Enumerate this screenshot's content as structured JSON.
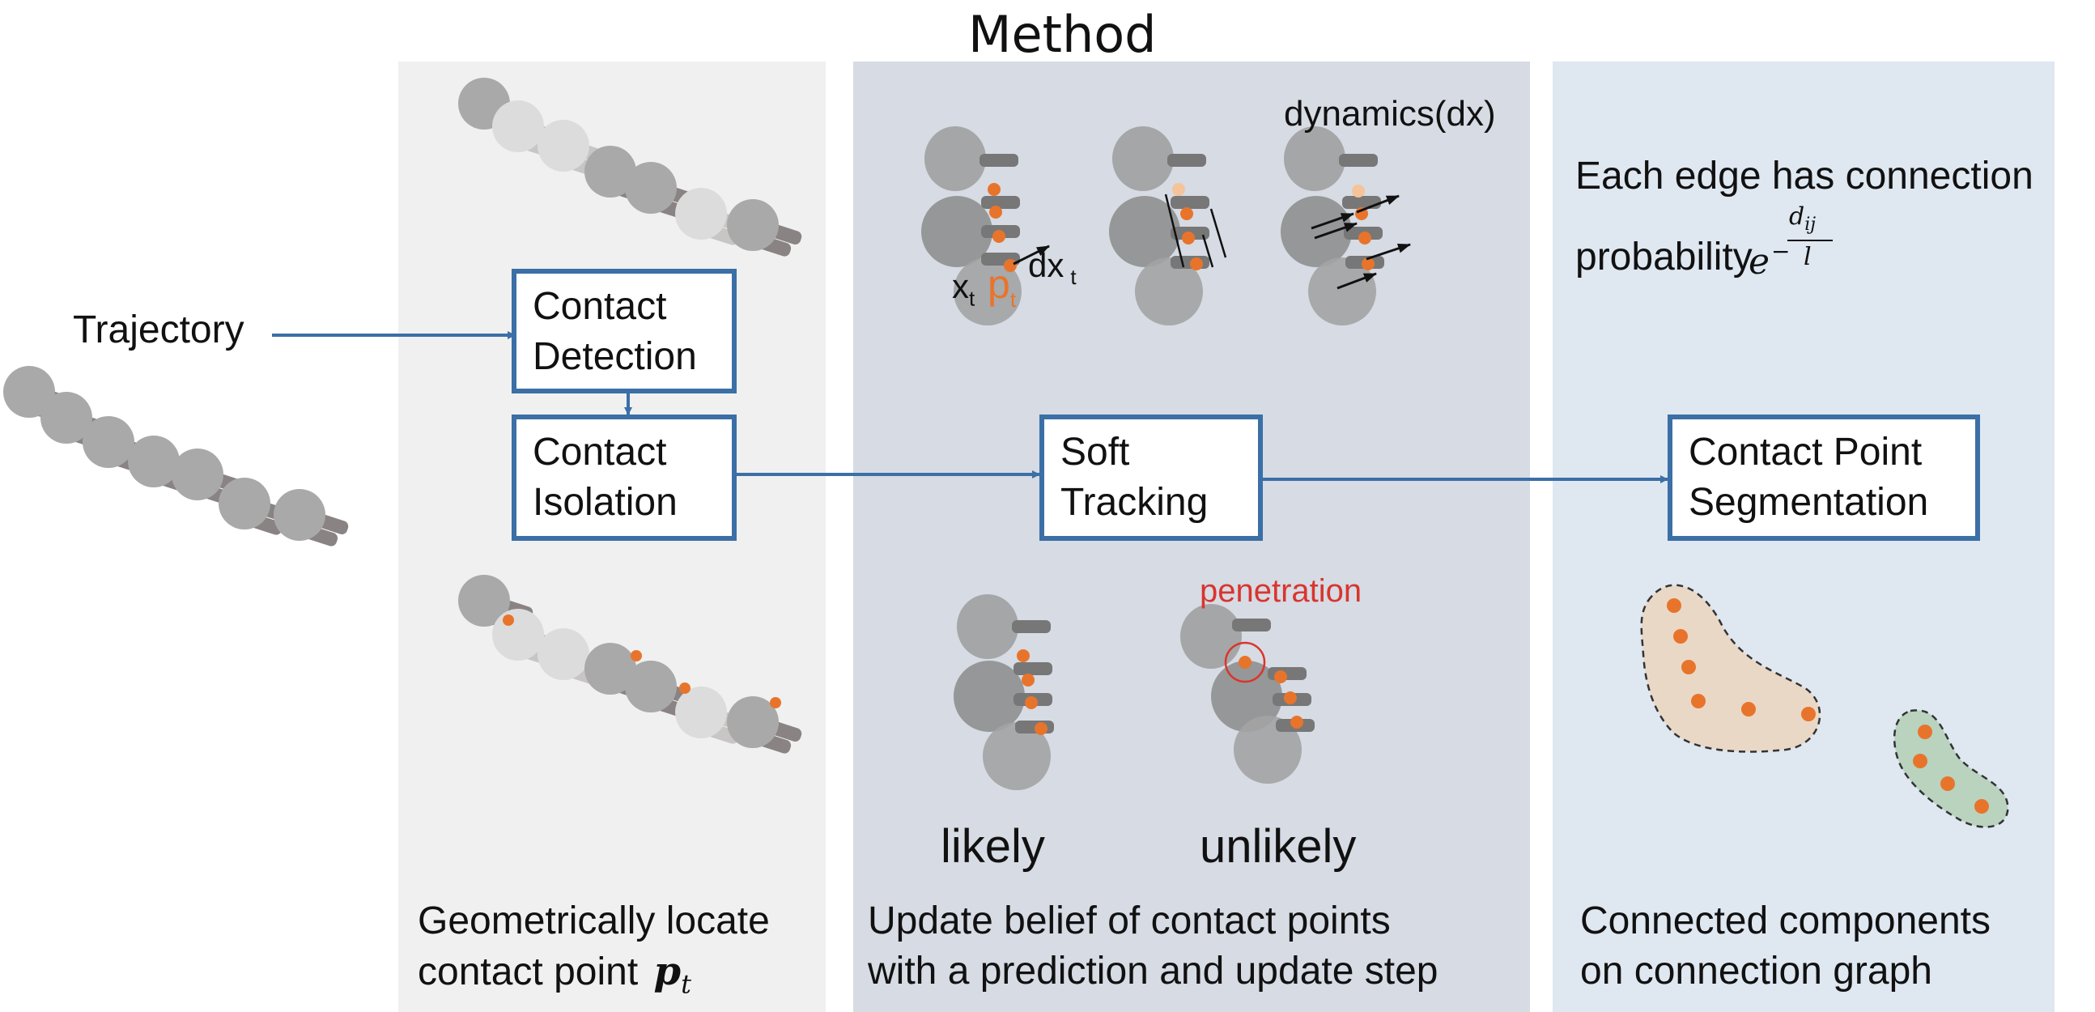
{
  "title": "Method",
  "input": {
    "label": "Trajectory"
  },
  "panels": {
    "detection": {
      "box1": {
        "line1": "Contact",
        "line2": "Detection"
      },
      "box2": {
        "line1": "Contact",
        "line2": "Isolation"
      },
      "caption_line1": "Geometrically locate",
      "caption_line2_text": "contact point",
      "caption_symbol": "p",
      "caption_subscript": "t"
    },
    "tracking": {
      "box": {
        "line1": "Soft",
        "line2": "Tracking"
      },
      "dynamics_label": "dynamics(dx)",
      "x_label": "x",
      "x_sub": "t",
      "p_label": "p",
      "p_sub": "t",
      "dx_label": "dx",
      "dx_sub": "t",
      "likely_label": "likely",
      "unlikely_label": "unlikely",
      "penetration_label": "penetration",
      "caption_line1": "Update belief of contact points",
      "caption_line2": "with a prediction and update step"
    },
    "segmentation": {
      "box": {
        "line1": "Contact Point",
        "line2": "Segmentation"
      },
      "edge_text_line1": "Each edge has connection",
      "edge_text_line2": "probability",
      "formula_base": "e",
      "formula_numerator": "d",
      "formula_num_sub": "ij",
      "formula_denominator": "l",
      "caption_line1": "Connected components",
      "caption_line2": "on connection graph"
    }
  },
  "colors": {
    "panel_left": "#f0f0f0",
    "panel_mid": "#d6dbe4",
    "panel_right": "#dfe7f1",
    "box_border": "#3b6fa6",
    "contact_point": "#e8742c",
    "penetration": "#d9352d",
    "cluster1": "#ead8c7",
    "cluster2": "#b9d3bf"
  }
}
